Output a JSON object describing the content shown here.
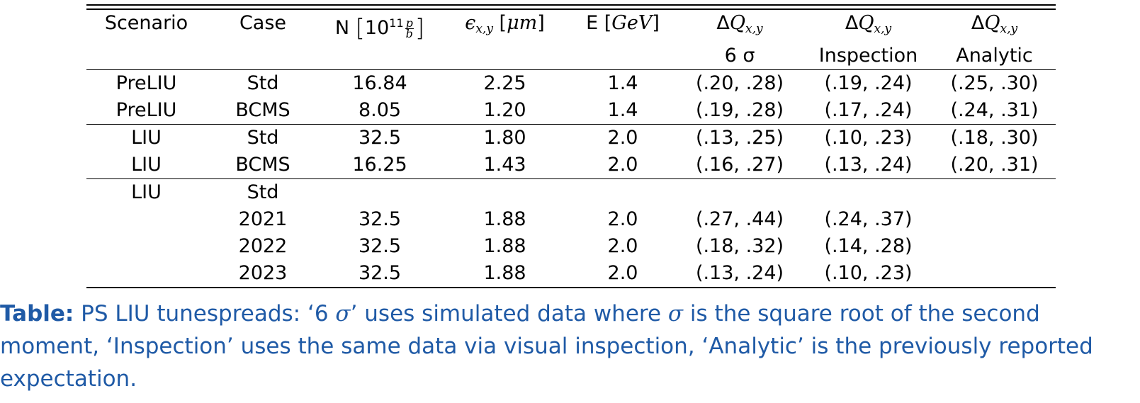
{
  "table": {
    "headers": {
      "scenario": "Scenario",
      "case": "Case",
      "n_prefix": "N",
      "n_base": "10",
      "n_exp": "11",
      "n_num": "p",
      "n_den": "b",
      "emit_sym": "ϵ",
      "emit_sub": "x,y",
      "emit_open": "[",
      "emit_mu": "μ",
      "emit_m": "m",
      "emit_close": "]",
      "energy_prefix": "E [",
      "energy_unit": "GeV",
      "energy_close": "]",
      "dq_delta": "Δ",
      "dq_q": "Q",
      "dq_sub": "x,y",
      "dq1_sub": "6 σ",
      "dq2_sub": "Inspection",
      "dq3_sub": "Analytic"
    },
    "rows": [
      {
        "scenario": "PreLIU",
        "case": "Std",
        "n": "16.84",
        "emit": "2.25",
        "energy": "1.4",
        "dq_6sigma": "(.20, .28)",
        "dq_inspection": "(.19, .24)",
        "dq_analytic": "(.25, .30)"
      },
      {
        "scenario": "PreLIU",
        "case": "BCMS",
        "n": "8.05",
        "emit": "1.20",
        "energy": "1.4",
        "dq_6sigma": "(.19, .28)",
        "dq_inspection": "(.17, .24)",
        "dq_analytic": "(.24, .31)"
      },
      {
        "scenario": "LIU",
        "case": "Std",
        "n": "32.5",
        "emit": "1.80",
        "energy": "2.0",
        "dq_6sigma": "(.13, .25)",
        "dq_inspection": "(.10, .23)",
        "dq_analytic": "(.18, .30)"
      },
      {
        "scenario": "LIU",
        "case": "BCMS",
        "n": "16.25",
        "emit": "1.43",
        "energy": "2.0",
        "dq_6sigma": "(.16, .27)",
        "dq_inspection": "(.13, .24)",
        "dq_analytic": "(.20, .31)"
      },
      {
        "scenario": "LIU",
        "case": "Std",
        "n": "",
        "emit": "",
        "energy": "",
        "dq_6sigma": "",
        "dq_inspection": "",
        "dq_analytic": ""
      },
      {
        "scenario": "",
        "case": "2021",
        "n": "32.5",
        "emit": "1.88",
        "energy": "2.0",
        "dq_6sigma": "(.27, .44)",
        "dq_inspection": "(.24, .37)",
        "dq_analytic": ""
      },
      {
        "scenario": "",
        "case": "2022",
        "n": "32.5",
        "emit": "1.88",
        "energy": "2.0",
        "dq_6sigma": "(.18, .32)",
        "dq_inspection": "(.14, .28)",
        "dq_analytic": ""
      },
      {
        "scenario": "",
        "case": "2023",
        "n": "32.5",
        "emit": "1.88",
        "energy": "2.0",
        "dq_6sigma": "(.13, .24)",
        "dq_inspection": "(.10, .23)",
        "dq_analytic": ""
      }
    ]
  },
  "caption": {
    "label": "Table:",
    "text_a": " PS LIU tunespreads: ‘6 ",
    "sigma1": "σ",
    "text_b": "’ uses simulated data where ",
    "sigma2": "σ",
    "text_c": " is the square root of the second moment, ‘Inspection’ uses the same data via visual inspection, ‘Analytic’ is the previously reported expectation."
  },
  "colors": {
    "caption": "#1f5aa6",
    "text": "#000000"
  }
}
